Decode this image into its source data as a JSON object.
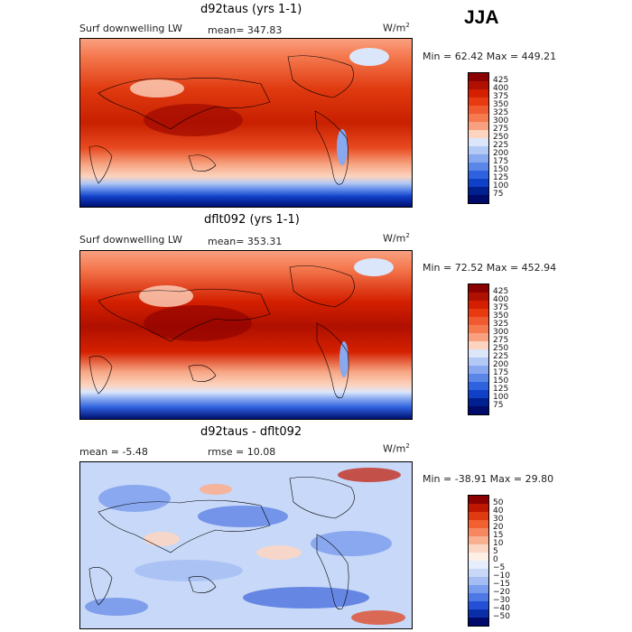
{
  "season": "JJA",
  "panels": [
    {
      "title": "d92taus (yrs 1-1)",
      "left_label": "Surf downwelling LW",
      "center_label": "mean=  347.83",
      "units_base": "W/m",
      "units_exp": "2",
      "minmax": "Min =   62.42 Max = 449.21",
      "colorbar": {
        "labels": [
          "425",
          "400",
          "375",
          "350",
          "325",
          "300",
          "275",
          "250",
          "225",
          "200",
          "175",
          "150",
          "125",
          "100",
          "75"
        ],
        "colors": [
          "#8b0000",
          "#b01000",
          "#d42000",
          "#e83a10",
          "#f05a30",
          "#f57a50",
          "#f9a080",
          "#fcd4bf",
          "#dbe6fb",
          "#b2c8f5",
          "#88a9ef",
          "#5a86e8",
          "#2f62df",
          "#1040c8",
          "#002090",
          "#000a6a"
        ]
      }
    },
    {
      "title": "dflt092 (yrs 1-1)",
      "left_label": "Surf downwelling LW",
      "center_label": "mean=  353.31",
      "units_base": "W/m",
      "units_exp": "2",
      "minmax": "Min =   72.52 Max = 452.94",
      "colorbar": {
        "labels": [
          "425",
          "400",
          "375",
          "350",
          "325",
          "300",
          "275",
          "250",
          "225",
          "200",
          "175",
          "150",
          "125",
          "100",
          "75"
        ],
        "colors": [
          "#8b0000",
          "#b01000",
          "#d42000",
          "#e83a10",
          "#f05a30",
          "#f57a50",
          "#f9a080",
          "#fcd4bf",
          "#dbe6fb",
          "#b2c8f5",
          "#88a9ef",
          "#5a86e8",
          "#2f62df",
          "#1040c8",
          "#002090",
          "#000a6a"
        ]
      }
    },
    {
      "title": "d92taus - dflt092",
      "left_label": "mean =   -5.48",
      "center_label": "rmse =   10.08",
      "units_base": "W/m",
      "units_exp": "2",
      "minmax": "Min = -38.91 Max =  29.80",
      "colorbar": {
        "labels": [
          "50",
          "40",
          "30",
          "20",
          "15",
          "10",
          "5",
          "0",
          "−5",
          "−10",
          "−15",
          "−20",
          "−30",
          "−40",
          "−50"
        ],
        "colors": [
          "#8b0000",
          "#c01800",
          "#e03a10",
          "#f06030",
          "#f58860",
          "#f9b090",
          "#fcd6c4",
          "#fdefe6",
          "#e6eefc",
          "#c8d8f8",
          "#a4bdf3",
          "#7a9cec",
          "#4e78e3",
          "#2450d6",
          "#0a2ea8",
          "#000a6a"
        ]
      }
    }
  ]
}
